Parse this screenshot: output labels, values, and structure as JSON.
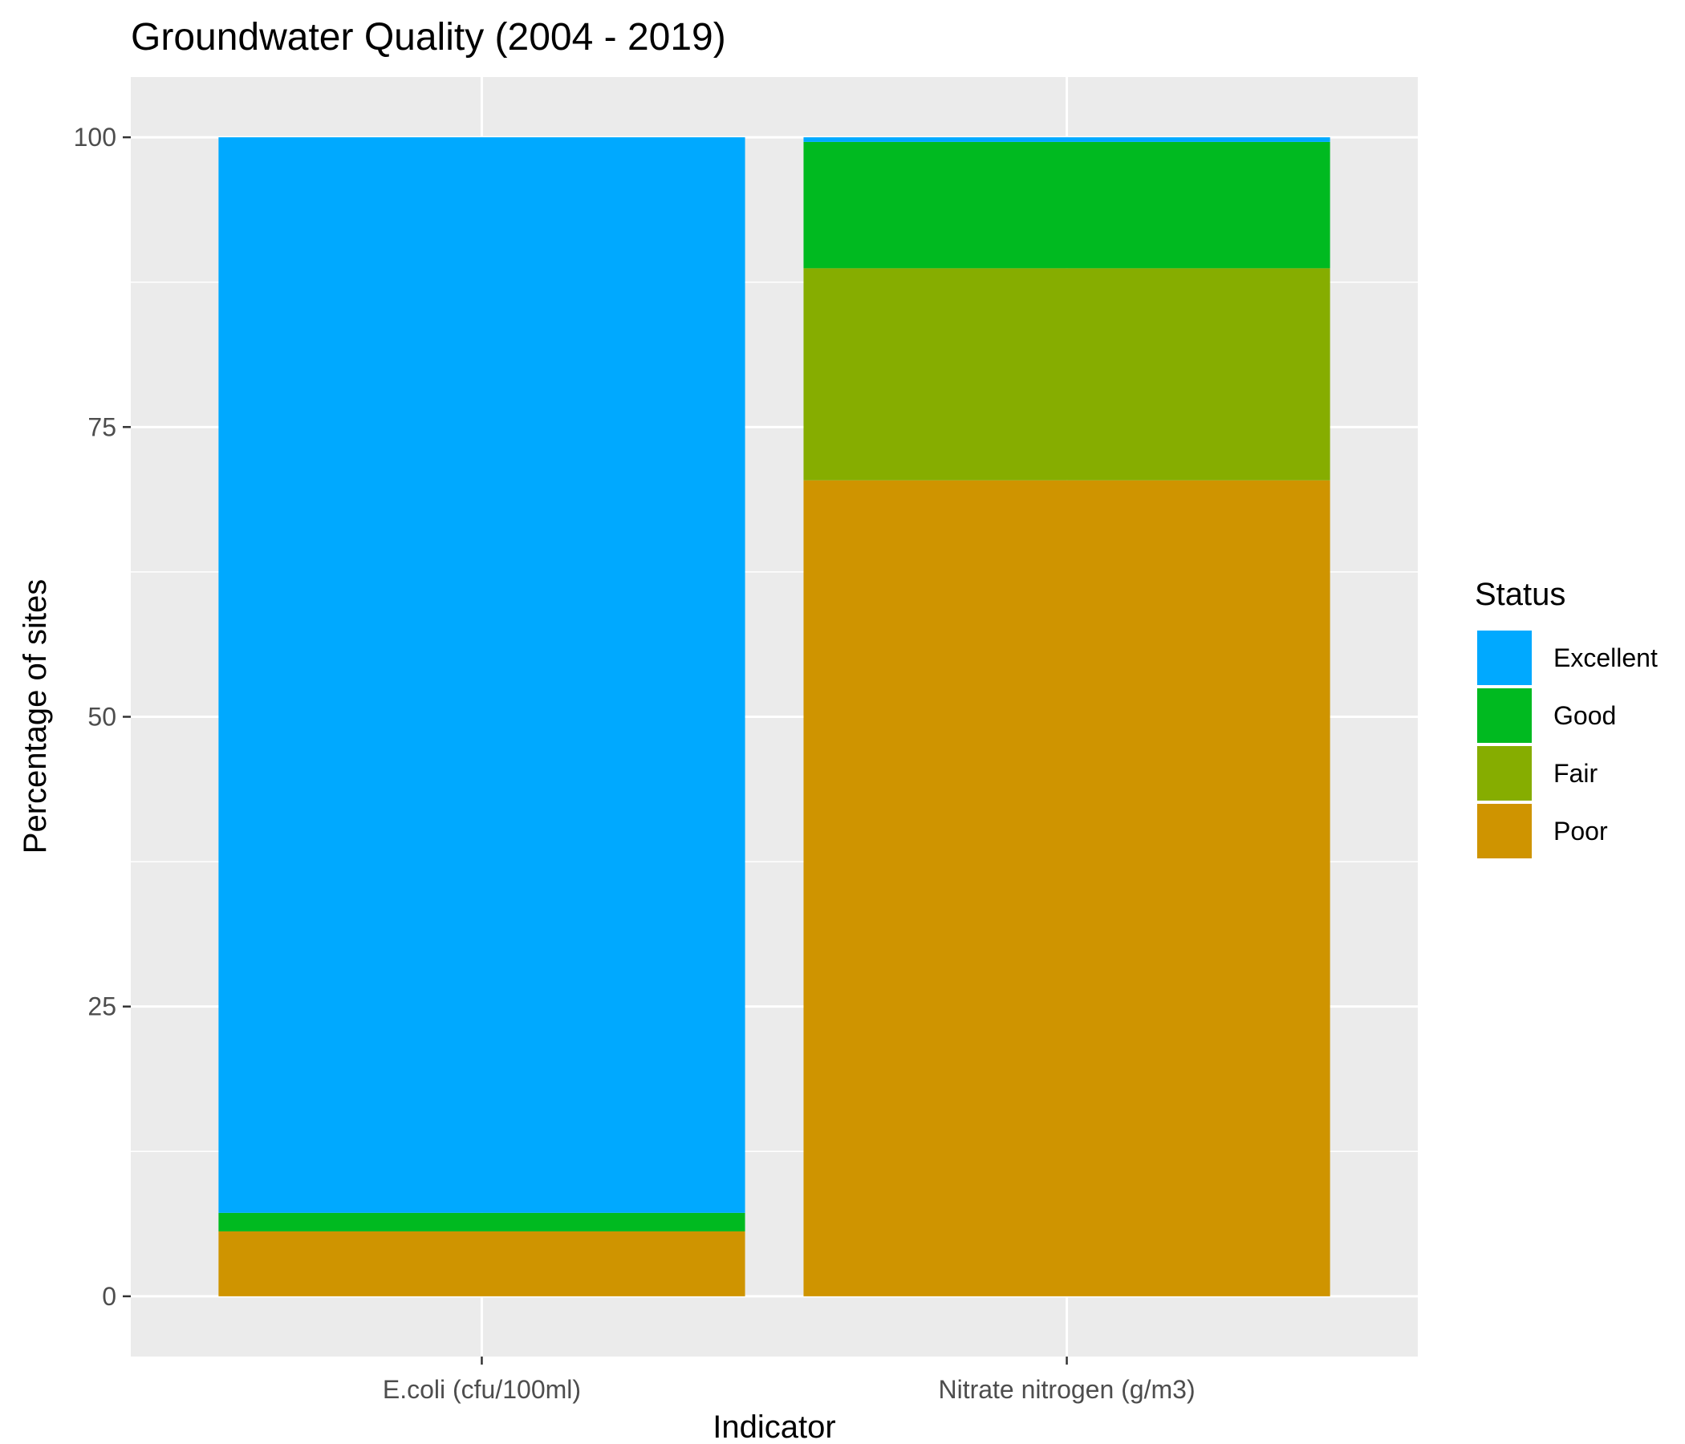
{
  "chart_data": {
    "type": "bar",
    "stacked": true,
    "title": "Groundwater Quality (2004 - 2019)",
    "xlabel": "Indicator",
    "ylabel": "Percentage of sites",
    "ylim": [
      -5.2,
      105.2
    ],
    "yticks": [
      0,
      25,
      50,
      75,
      100
    ],
    "ytick_labels": [
      "0",
      "25",
      "50",
      "75",
      "100"
    ],
    "categories": [
      "E.coli (cfu/100ml)",
      "Nitrate nitrogen (g/m3)"
    ],
    "series": [
      {
        "name": "Poor",
        "color": "#CF9400",
        "values": [
          5.6,
          70.4
        ]
      },
      {
        "name": "Fair",
        "color": "#86AD00",
        "values": [
          0,
          18.3
        ]
      },
      {
        "name": "Good",
        "color": "#00BA20",
        "values": [
          1.6,
          10.9
        ]
      },
      {
        "name": "Excellent",
        "color": "#00A9FF",
        "values": [
          92.8,
          0.4
        ]
      }
    ],
    "legend": {
      "title": "Status",
      "position": "right",
      "order": [
        "Excellent",
        "Good",
        "Fair",
        "Poor"
      ]
    },
    "grid": true,
    "panel_background": "#EBEBEB"
  }
}
